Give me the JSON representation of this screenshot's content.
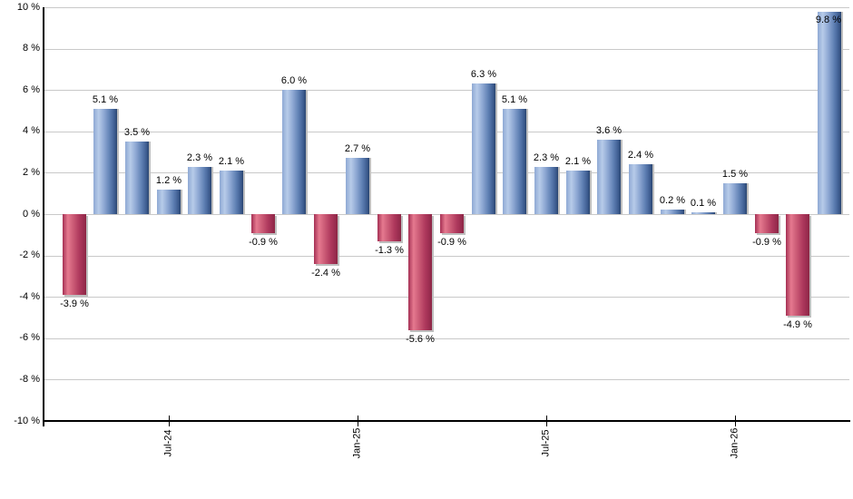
{
  "chart_data": {
    "type": "bar",
    "title": "",
    "xlabel": "",
    "ylabel": "",
    "unit_suffix": " %",
    "ylim": [
      -10,
      10
    ],
    "ytick_step": 2,
    "ytick_labels": [
      "10 %",
      "8 %",
      "6 %",
      "4 %",
      "2 %",
      "0 %",
      "-2 %",
      "-4 %",
      "-6 %",
      "-8 %",
      "-10 %"
    ],
    "grid": "horizontal-only",
    "legend": false,
    "values": [
      -3.9,
      5.1,
      3.5,
      1.2,
      2.3,
      2.1,
      -0.9,
      6.0,
      -2.4,
      2.7,
      -1.3,
      -5.6,
      -0.9,
      6.3,
      5.1,
      2.3,
      2.1,
      3.6,
      2.4,
      0.2,
      0.1,
      1.5,
      -0.9,
      -4.9,
      9.8
    ],
    "bar_labels": [
      "-3.9 %",
      "5.1 %",
      "3.5 %",
      "1.2 %",
      "2.3 %",
      "2.1 %",
      "-0.9 %",
      "6.0 %",
      "-2.4 %",
      "2.7 %",
      "-1.3 %",
      "-5.6 %",
      "-0.9 %",
      "6.3 %",
      "5.1 %",
      "2.3 %",
      "2.1 %",
      "3.6 %",
      "2.4 %",
      "0.2 %",
      "0.1 %",
      "1.5 %",
      "-0.9 %",
      "-4.9 %",
      "9.8 %"
    ],
    "x_ticks": [
      {
        "bar_index": 3,
        "label": "Jul-24"
      },
      {
        "bar_index": 9,
        "label": "Jan-25"
      },
      {
        "bar_index": 15,
        "label": "Jul-25"
      },
      {
        "bar_index": 21,
        "label": "Jan-26"
      }
    ],
    "colors": {
      "positive_bar": "#6f8fc3",
      "positive_highlight": "#b7cbe9",
      "positive_edge": "#2a4670",
      "negative_bar": "#c04a66",
      "negative_highlight": "#e5798f",
      "negative_edge": "#8c2644",
      "grid_line": "#c9c9c9",
      "axis_line": "#000000",
      "label_text": "#000000",
      "background": "#ffffff"
    }
  }
}
